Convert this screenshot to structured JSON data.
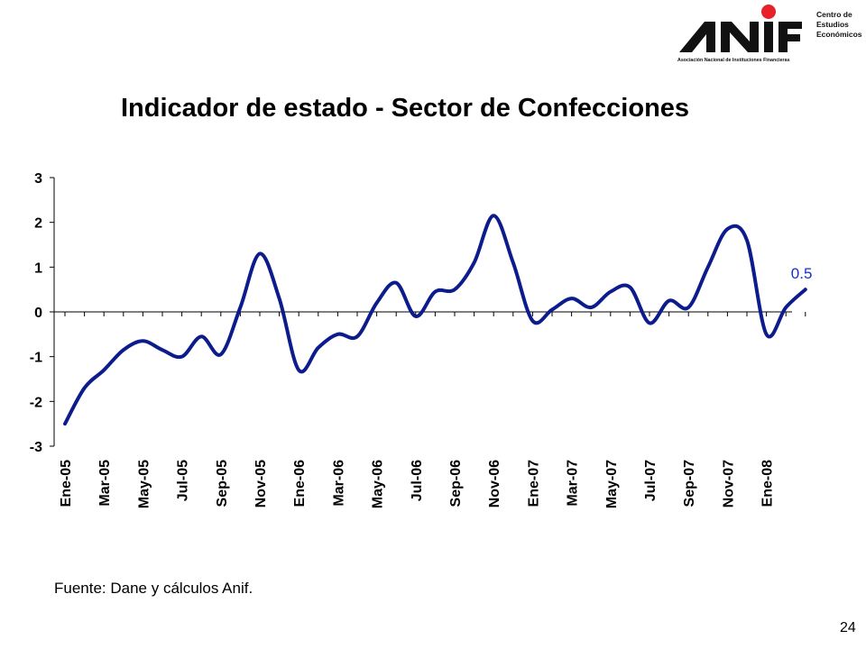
{
  "logo": {
    "wordmark": "ANIF",
    "tagline": "Asociación Nacional de Instituciones Financieras",
    "unit_lines": [
      "Centro de",
      "Estudios",
      "Económicos"
    ],
    "dot_color": "#e8202a"
  },
  "source_note": "Fuente: Dane y cálculos Anif.",
  "page_number": "24",
  "chart_data": {
    "type": "line",
    "title": "Indicador de estado - Sector de Confecciones",
    "xlabel": "",
    "ylabel": "",
    "ylim": [
      -3,
      3
    ],
    "y_ticks": [
      3,
      2,
      1,
      0,
      -1,
      -2,
      -3
    ],
    "grid": false,
    "line_color": "#0c1c8c",
    "tick_labels": [
      "Ene-05",
      "Mar-05",
      "May-05",
      "Jul-05",
      "Sep-05",
      "Nov-05",
      "Ene-06",
      "Mar-06",
      "May-06",
      "Jul-06",
      "Sep-06",
      "Nov-06",
      "Ene-07",
      "Mar-07",
      "May-07",
      "Jul-07",
      "Sep-07",
      "Nov-07",
      "Ene-08"
    ],
    "x": [
      "Ene-05",
      "Feb-05",
      "Mar-05",
      "Abr-05",
      "May-05",
      "Jun-05",
      "Jul-05",
      "Ago-05",
      "Sep-05",
      "Oct-05",
      "Nov-05",
      "Dic-05",
      "Ene-06",
      "Feb-06",
      "Mar-06",
      "Abr-06",
      "May-06",
      "Jun-06",
      "Jul-06",
      "Ago-06",
      "Sep-06",
      "Oct-06",
      "Nov-06",
      "Dic-06",
      "Ene-07",
      "Feb-07",
      "Mar-07",
      "Abr-07",
      "May-07",
      "Jun-07",
      "Jul-07",
      "Ago-07",
      "Sep-07",
      "Oct-07",
      "Nov-07",
      "Dic-07",
      "Ene-08",
      "Feb-08",
      "Mar-08"
    ],
    "series": [
      {
        "values": [
          -2.5,
          -1.7,
          -1.3,
          -0.85,
          -0.65,
          -0.85,
          -1.0,
          -0.55,
          -0.95,
          0.1,
          1.3,
          0.3,
          -1.3,
          -0.8,
          -0.5,
          -0.55,
          0.2,
          0.65,
          -0.1,
          0.45,
          0.5,
          1.1,
          2.15,
          1.1,
          -0.2,
          0.05,
          0.3,
          0.1,
          0.45,
          0.55,
          -0.25,
          0.25,
          0.1,
          1.0,
          1.85,
          1.6,
          -0.5,
          0.1,
          0.5
        ],
        "last_label": "0.5",
        "last_label_color": "#1a2fcc"
      }
    ]
  }
}
